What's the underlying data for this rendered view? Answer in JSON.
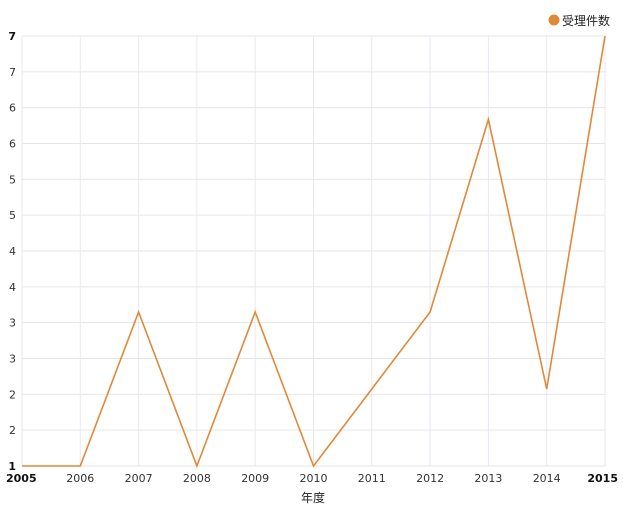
{
  "chart_data": {
    "type": "line",
    "title": "",
    "xlabel": "年度",
    "ylabel": "",
    "x": [
      "2005",
      "2006",
      "2007",
      "2008",
      "2009",
      "2010",
      "2011",
      "2012",
      "2013",
      "2014",
      "2015"
    ],
    "series": [
      {
        "name": "受理件数",
        "color": "#E0893A",
        "values": [
          1,
          1,
          3.4,
          1,
          3.4,
          1,
          2.2,
          3.4,
          6.4,
          2.2,
          7.7
        ]
      }
    ],
    "ylim": [
      1,
      7.7
    ],
    "y_tick_labels": [
      "1",
      "2",
      "2",
      "3",
      "3",
      "4",
      "4",
      "5",
      "5",
      "6",
      "6",
      "7",
      "7"
    ],
    "grid": true,
    "legend": "top-right"
  }
}
